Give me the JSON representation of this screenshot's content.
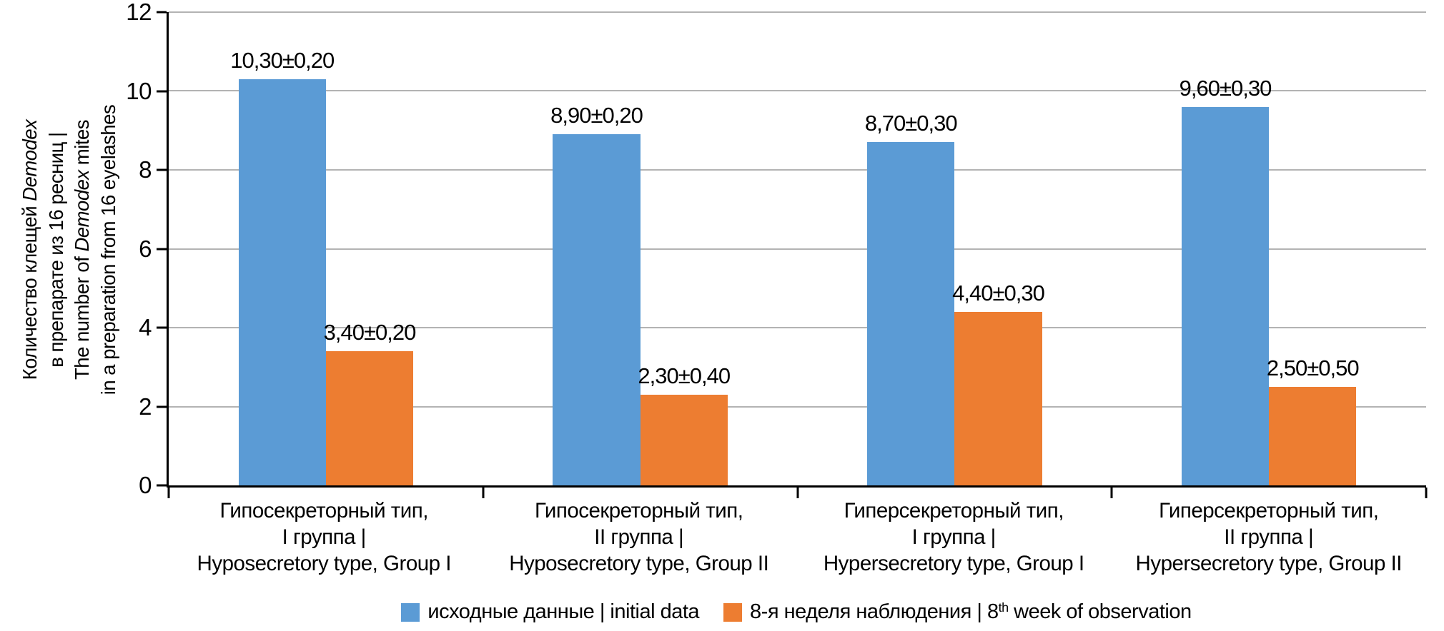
{
  "colors": {
    "background": "#ffffff",
    "text": "#000000",
    "axis": "#000000",
    "gridline": "#b3b3b3",
    "bar_blue": "#5B9BD5",
    "bar_orange": "#ED7D31"
  },
  "chart_data": {
    "type": "bar",
    "grid": true,
    "legend_position": "bottom",
    "y_axis": {
      "min": 0,
      "max": 12,
      "tick_step": 2,
      "ticks": [
        0,
        2,
        4,
        6,
        8,
        10,
        12
      ],
      "title_lines": [
        [
          {
            "t": "Количество клещей "
          },
          {
            "t": "Demodex",
            "i": true
          }
        ],
        [
          {
            "t": "в препарате из 16 ресниц |"
          }
        ],
        [
          {
            "t": "The number of "
          },
          {
            "t": "Demodex",
            "i": true
          },
          {
            "t": " mites"
          }
        ],
        [
          {
            "t": "in a preparation from 16 eyelashes"
          }
        ]
      ]
    },
    "categories": [
      {
        "lines": [
          "Гипосекреторный тип,",
          "I группа |",
          "Hyposecretory type, Group I"
        ]
      },
      {
        "lines": [
          "Гипосекреторный тип,",
          "II группа |",
          "Hyposecretory type, Group II"
        ]
      },
      {
        "lines": [
          "Гиперсекреторный тип,",
          "I группа |",
          "Hypersecretory type, Group I"
        ]
      },
      {
        "lines": [
          "Гиперсекреторный тип,",
          "II группа |",
          "Hypersecretory type, Group II"
        ]
      }
    ],
    "series": [
      {
        "key": "initial-data",
        "color": "#5B9BD5",
        "name_segments": [
          {
            "t": "исходные данные | initial data"
          }
        ],
        "values": [
          10.3,
          8.9,
          8.7,
          9.6
        ],
        "labels": [
          "10,30±0,20",
          "8,90±0,20",
          "8,70±0,30",
          "9,60±0,30"
        ]
      },
      {
        "key": "week-8-observation",
        "color": "#ED7D31",
        "name_segments": [
          {
            "t": "8-я неделя наблюдения | 8"
          },
          {
            "t": "th",
            "sup": true
          },
          {
            "t": " week of observation"
          }
        ],
        "values": [
          3.4,
          2.3,
          4.4,
          2.5
        ],
        "labels": [
          "3,40±0,20",
          "2,30±0,40",
          "4,40±0,30",
          "2,50±0,50"
        ]
      }
    ]
  }
}
